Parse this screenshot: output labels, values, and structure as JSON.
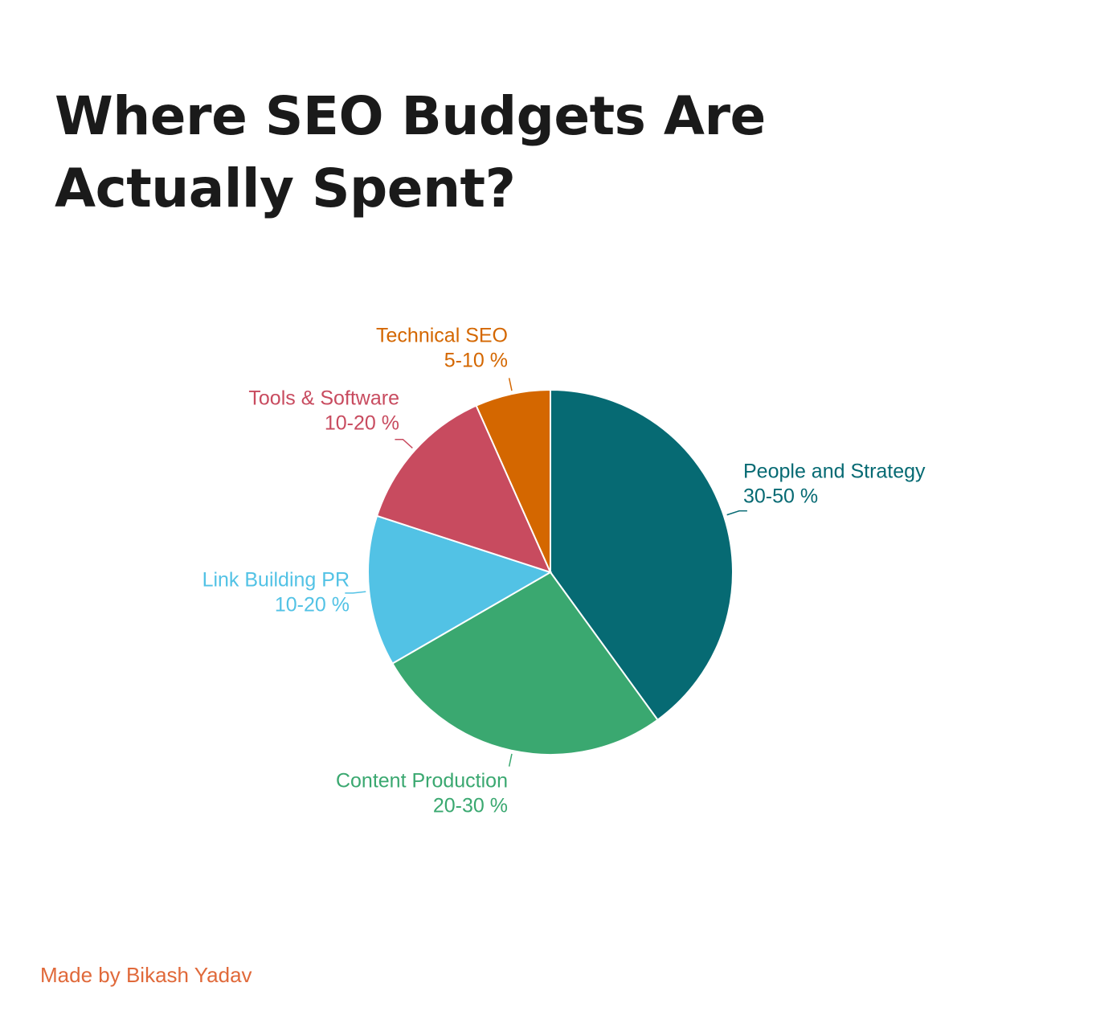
{
  "chart_data": {
    "type": "pie",
    "title": "Where SEO Budgets Are Actually Spent?",
    "categories": [
      "People and Strategy",
      "Content Production",
      "Link Building PR",
      "Tools & Software",
      "Technical SEO"
    ],
    "values": [
      30,
      20,
      10,
      10,
      5
    ],
    "value_labels": [
      "30-50 %",
      "20-30 %",
      "10-20 %",
      "10-20 %",
      "5-10 %"
    ],
    "colors": [
      "#066a73",
      "#3aa870",
      "#52c2e5",
      "#c84b5f",
      "#d46700"
    ]
  },
  "footer": "Made by Bikash Yadav"
}
